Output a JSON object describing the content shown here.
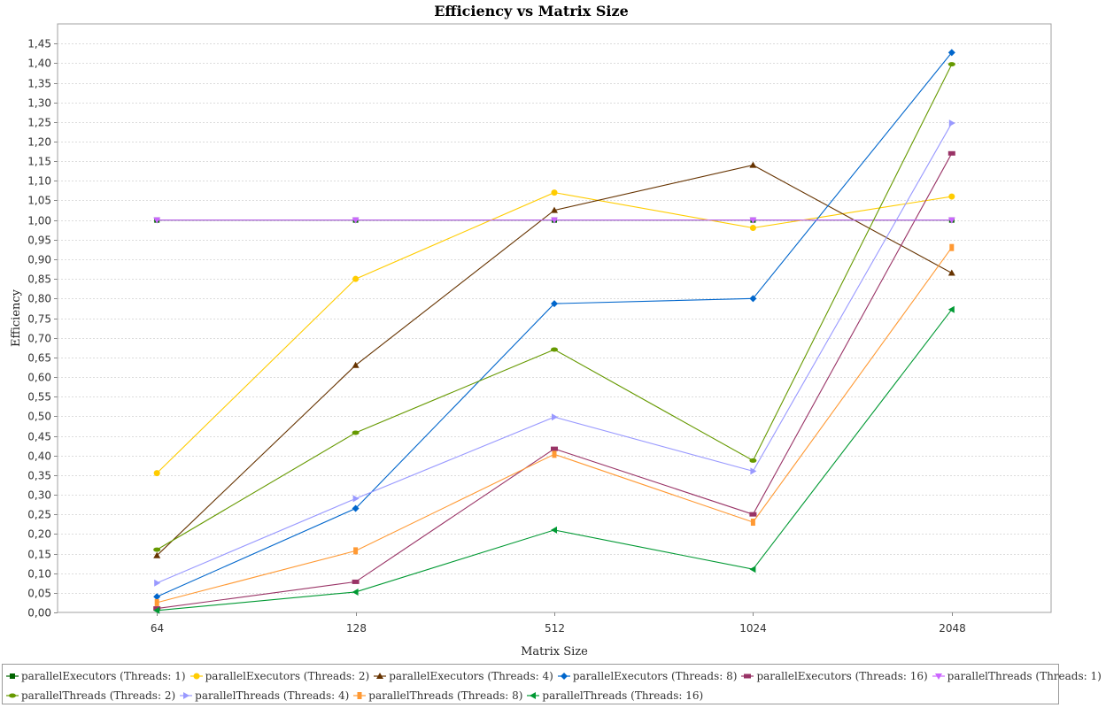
{
  "chart_data": {
    "type": "line",
    "title": "Efficiency vs Matrix Size",
    "xlabel": "Matrix Size",
    "ylabel": "Efficiency",
    "categories": [
      "64",
      "128",
      "512",
      "1024",
      "2048"
    ],
    "ylim": [
      0,
      1.5
    ],
    "ytick_step": 0.05,
    "grid": true,
    "legend_position": "bottom",
    "series": [
      {
        "name": "parallelExecutors (Threads: 1)",
        "color": "#006400",
        "marker": "square",
        "values": [
          1.0,
          1.0,
          1.0,
          1.0,
          1.0
        ]
      },
      {
        "name": "parallelExecutors (Threads: 2)",
        "color": "#FFCC00",
        "marker": "circle",
        "values": [
          0.355,
          0.85,
          1.07,
          0.98,
          1.06
        ]
      },
      {
        "name": "parallelExecutors (Threads: 4)",
        "color": "#663300",
        "marker": "triangle-up",
        "values": [
          0.145,
          0.63,
          1.025,
          1.14,
          0.865
        ]
      },
      {
        "name": "parallelExecutors (Threads: 8)",
        "color": "#0066CC",
        "marker": "diamond",
        "values": [
          0.04,
          0.265,
          0.787,
          0.8,
          1.427
        ]
      },
      {
        "name": "parallelExecutors (Threads: 16)",
        "color": "#993366",
        "marker": "rect-h",
        "values": [
          0.01,
          0.078,
          0.417,
          0.25,
          1.17
        ]
      },
      {
        "name": "parallelThreads (Threads: 1)",
        "color": "#CC66FF",
        "marker": "triangle-down",
        "values": [
          1.0,
          1.0,
          1.0,
          1.0,
          1.0
        ]
      },
      {
        "name": "parallelThreads (Threads: 2)",
        "color": "#669900",
        "marker": "ellipse-h",
        "values": [
          0.16,
          0.458,
          0.67,
          0.387,
          1.397
        ]
      },
      {
        "name": "parallelThreads (Threads: 4)",
        "color": "#9999FF",
        "marker": "triangle-right",
        "values": [
          0.075,
          0.29,
          0.498,
          0.36,
          1.247
        ]
      },
      {
        "name": "parallelThreads (Threads: 8)",
        "color": "#FF9933",
        "marker": "rect-v",
        "values": [
          0.025,
          0.157,
          0.403,
          0.23,
          0.93
        ]
      },
      {
        "name": "parallelThreads (Threads: 16)",
        "color": "#009933",
        "marker": "triangle-left",
        "values": [
          0.005,
          0.052,
          0.21,
          0.11,
          0.772
        ]
      }
    ]
  }
}
